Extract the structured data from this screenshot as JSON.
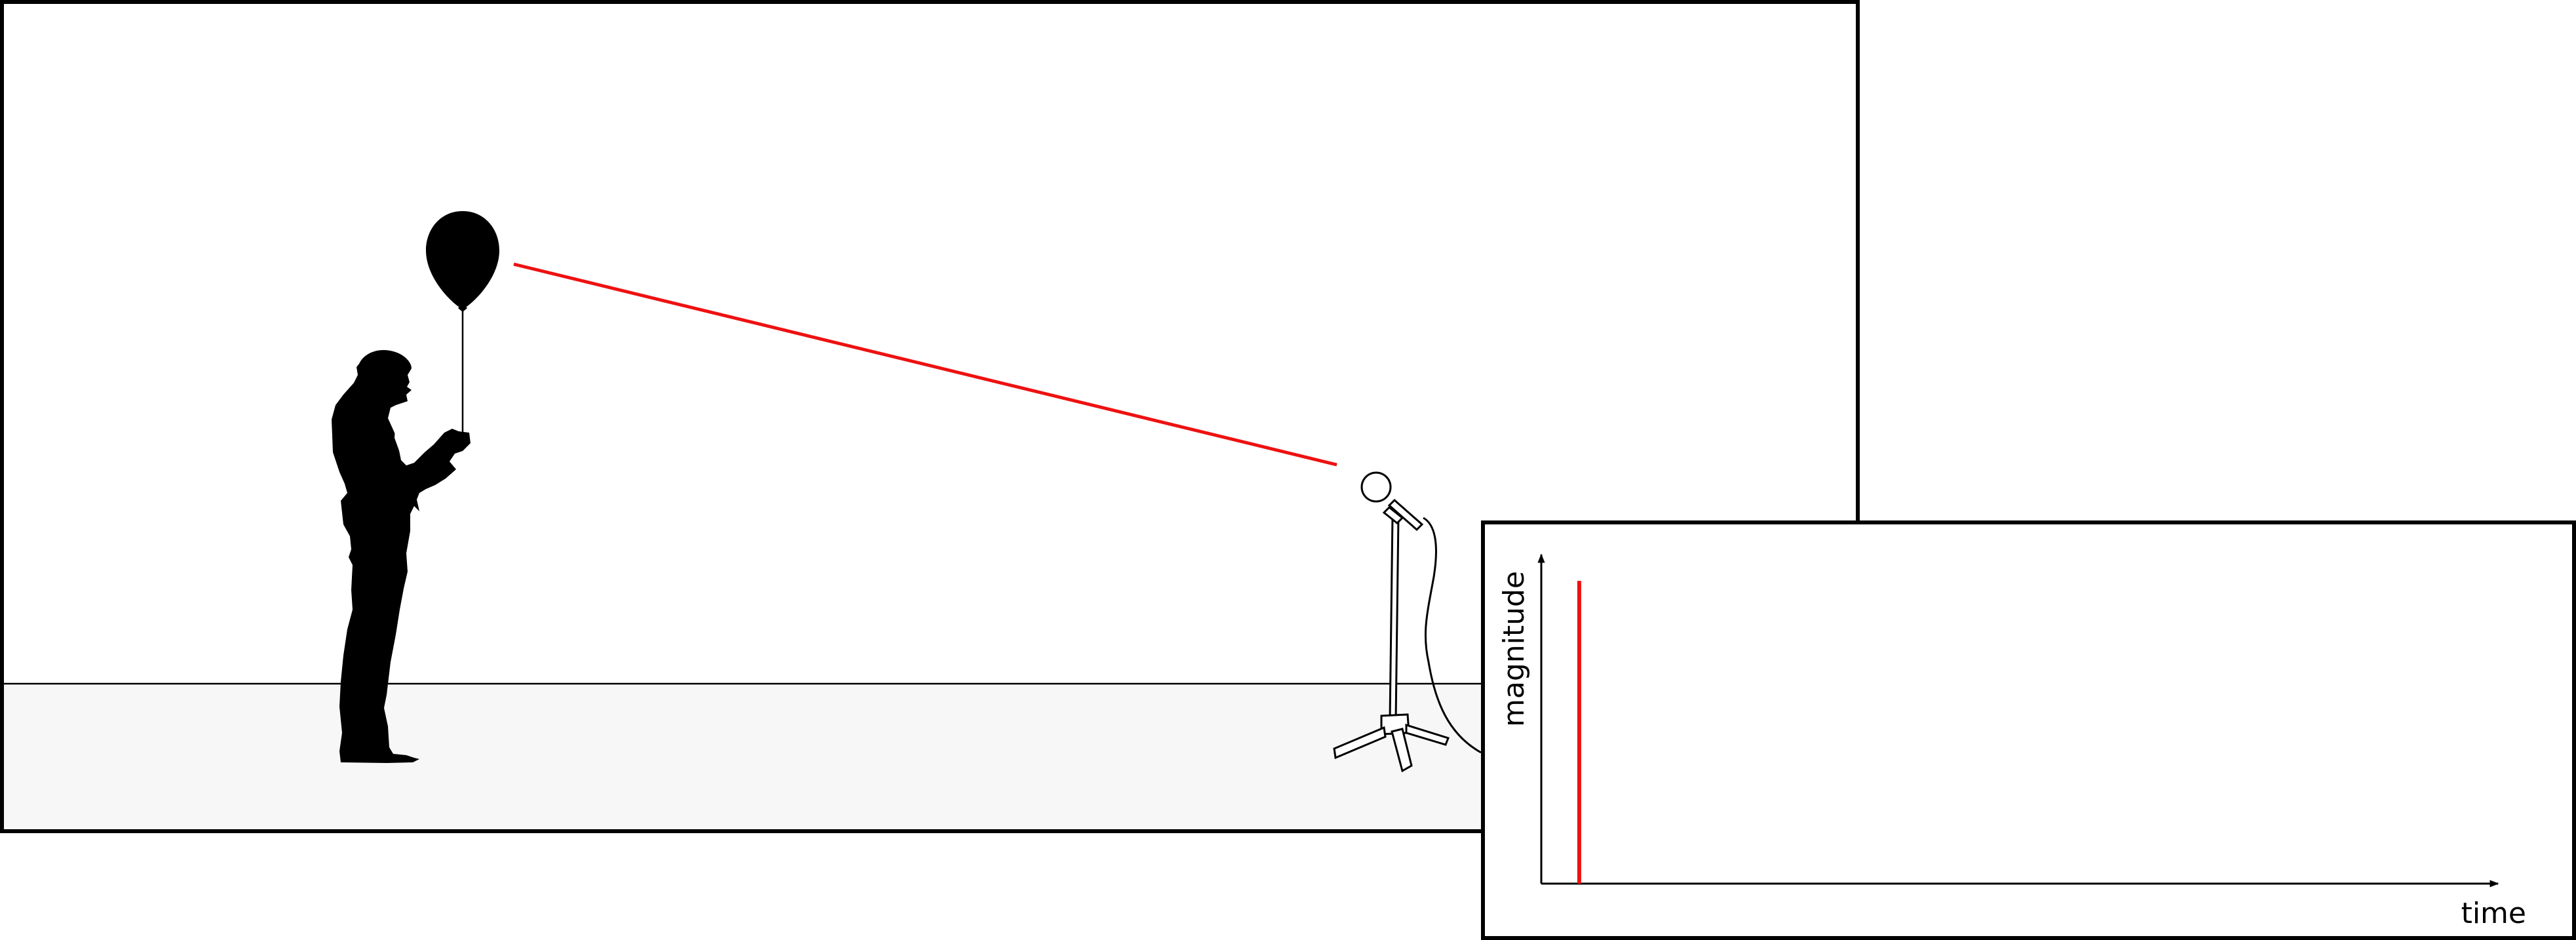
{
  "scene": {
    "people_icon": "person-silhouette-icon",
    "balloon_icon": "balloon-icon",
    "microphone_icon": "microphone-on-stand-icon",
    "colors": {
      "sound_path": "#ee1111",
      "floor": "#f7f7f7",
      "outline": "#000000"
    }
  },
  "chart_data": {
    "type": "line",
    "xlabel": "time",
    "ylabel": "magnitude",
    "series": [
      {
        "x": [
          0.04,
          0.04
        ],
        "y": [
          0,
          1
        ]
      }
    ],
    "xlim": [
      0,
      1
    ],
    "ylim": [
      0,
      1.1
    ],
    "grid": false,
    "color": "#ee1111"
  }
}
